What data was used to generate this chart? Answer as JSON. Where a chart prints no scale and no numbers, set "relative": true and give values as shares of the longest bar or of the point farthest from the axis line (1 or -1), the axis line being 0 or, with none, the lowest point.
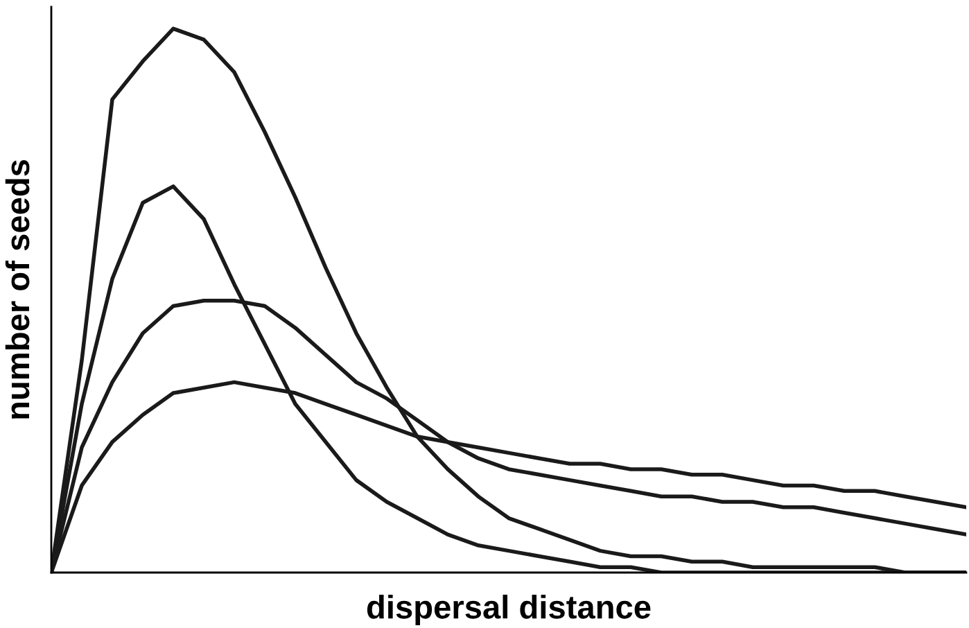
{
  "chart_data": {
    "type": "line",
    "relative": true,
    "xlabel": "dispersal distance",
    "ylabel": "number of seeds",
    "line_style": "solid",
    "categories": [
      null,
      null,
      null,
      null,
      null,
      null,
      null,
      null,
      null,
      null,
      null,
      null,
      null,
      null,
      null,
      null,
      null,
      null,
      null,
      null,
      null,
      null,
      null,
      null,
      null,
      null,
      null,
      null,
      null,
      null,
      null
    ],
    "series": [
      {
        "color": "#1a1a1a",
        "values": [
          0,
          0.39,
          0.87,
          0.94,
          1.0,
          0.98,
          0.92,
          0.81,
          0.69,
          0.56,
          0.44,
          0.34,
          0.25,
          0.19,
          0.14,
          0.1,
          0.08,
          0.06,
          0.04,
          0.03,
          0.03,
          0.02,
          0.02,
          0.01,
          0.01,
          0.01,
          0.01,
          0.01,
          0,
          0,
          0
        ]
      },
      {
        "color": "#1a1a1a",
        "values": [
          0,
          0.31,
          0.54,
          0.68,
          0.71,
          0.65,
          0.53,
          0.42,
          0.31,
          0.24,
          0.17,
          0.13,
          0.1,
          0.07,
          0.05,
          0.04,
          0.03,
          0.02,
          0.01,
          0.01,
          0,
          0,
          0,
          0,
          0,
          0,
          0,
          0,
          0,
          0,
          0
        ]
      },
      {
        "color": "#1a1a1a",
        "values": [
          0,
          0.23,
          0.35,
          0.44,
          0.49,
          0.5,
          0.5,
          0.49,
          0.45,
          0.4,
          0.35,
          0.32,
          0.28,
          0.24,
          0.21,
          0.19,
          0.18,
          0.17,
          0.16,
          0.15,
          0.14,
          0.14,
          0.13,
          0.13,
          0.12,
          0.12,
          0.11,
          0.1,
          0.09,
          0.08,
          0.07
        ]
      },
      {
        "color": "#1a1a1a",
        "values": [
          0,
          0.16,
          0.24,
          0.29,
          0.33,
          0.34,
          0.35,
          0.34,
          0.33,
          0.31,
          0.29,
          0.27,
          0.25,
          0.24,
          0.23,
          0.22,
          0.21,
          0.2,
          0.2,
          0.19,
          0.19,
          0.18,
          0.18,
          0.17,
          0.16,
          0.16,
          0.15,
          0.15,
          0.14,
          0.13,
          0.12
        ]
      }
    ]
  }
}
